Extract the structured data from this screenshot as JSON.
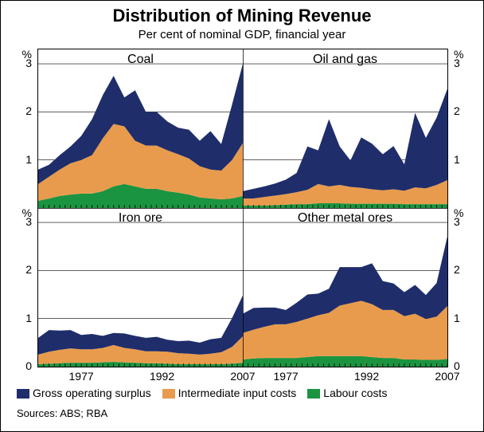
{
  "title": "Distribution of Mining Revenue",
  "subtitle": "Per cent of nominal GDP, financial year",
  "sources": "Sources: ABS; RBA",
  "background_color": "#ffffff",
  "grid_color": "#000000",
  "axis_font_size": 14,
  "title_font_size": 22,
  "subtitle_font_size": 15,
  "panel_title_font_size": 16,
  "x_range": [
    1969,
    2007
  ],
  "y_range": [
    0,
    3.3
  ],
  "y_ticks": [
    0,
    1,
    2,
    3
  ],
  "y_grid": [
    1,
    2,
    3
  ],
  "y_tick_labels": [
    "0",
    "1",
    "2",
    "3"
  ],
  "y_unit_label": "%",
  "x_ticks_major": [
    1977,
    1992,
    2007
  ],
  "x_tick_labels": [
    "1977",
    "1992",
    "2007"
  ],
  "series_order": [
    "labour",
    "intermediate",
    "surplus"
  ],
  "colors": {
    "surplus": "#1f2d6b",
    "intermediate": "#e89b4c",
    "labour": "#1b9441"
  },
  "legend": {
    "surplus": "Gross operating surplus",
    "intermediate": "Intermediate input costs",
    "labour": "Labour costs"
  },
  "panels": [
    {
      "key": "coal",
      "title": "Coal",
      "row": 0,
      "col": 0,
      "years": [
        1969,
        1971,
        1973,
        1975,
        1977,
        1979,
        1981,
        1983,
        1985,
        1987,
        1989,
        1991,
        1993,
        1995,
        1997,
        1999,
        2001,
        2003,
        2005,
        2007
      ],
      "labour": [
        0.15,
        0.2,
        0.25,
        0.28,
        0.3,
        0.3,
        0.35,
        0.45,
        0.5,
        0.45,
        0.4,
        0.4,
        0.35,
        0.32,
        0.28,
        0.22,
        0.2,
        0.18,
        0.2,
        0.25
      ],
      "intermediate": [
        0.35,
        0.45,
        0.55,
        0.65,
        0.7,
        0.8,
        1.1,
        1.3,
        1.2,
        0.95,
        0.9,
        0.9,
        0.85,
        0.8,
        0.75,
        0.65,
        0.6,
        0.6,
        0.8,
        1.1
      ],
      "surplus": [
        0.3,
        0.25,
        0.3,
        0.35,
        0.5,
        0.75,
        0.9,
        1.0,
        0.6,
        1.05,
        0.7,
        0.7,
        0.6,
        0.55,
        0.6,
        0.53,
        0.8,
        0.55,
        1.15,
        1.65
      ]
    },
    {
      "key": "oilgas",
      "title": "Oil and gas",
      "row": 0,
      "col": 1,
      "years": [
        1969,
        1971,
        1973,
        1975,
        1977,
        1979,
        1981,
        1983,
        1985,
        1987,
        1989,
        1991,
        1993,
        1995,
        1997,
        1999,
        2001,
        2003,
        2005,
        2007
      ],
      "labour": [
        0.05,
        0.05,
        0.05,
        0.06,
        0.07,
        0.08,
        0.08,
        0.1,
        0.1,
        0.1,
        0.09,
        0.09,
        0.09,
        0.09,
        0.09,
        0.08,
        0.08,
        0.08,
        0.08,
        0.08
      ],
      "intermediate": [
        0.15,
        0.15,
        0.18,
        0.2,
        0.22,
        0.25,
        0.3,
        0.4,
        0.35,
        0.38,
        0.35,
        0.33,
        0.3,
        0.28,
        0.3,
        0.28,
        0.35,
        0.33,
        0.4,
        0.5
      ],
      "surplus": [
        0.15,
        0.2,
        0.22,
        0.25,
        0.3,
        0.4,
        0.9,
        0.7,
        1.4,
        0.8,
        0.55,
        1.05,
        0.95,
        0.75,
        0.9,
        0.55,
        1.55,
        1.05,
        1.4,
        1.9
      ]
    },
    {
      "key": "ironore",
      "title": "Iron ore",
      "row": 1,
      "col": 0,
      "years": [
        1969,
        1971,
        1973,
        1975,
        1977,
        1979,
        1981,
        1983,
        1985,
        1987,
        1989,
        1991,
        1993,
        1995,
        1997,
        1999,
        2001,
        2003,
        2005,
        2007
      ],
      "labour": [
        0.05,
        0.06,
        0.07,
        0.08,
        0.08,
        0.08,
        0.09,
        0.1,
        0.09,
        0.08,
        0.07,
        0.07,
        0.06,
        0.05,
        0.05,
        0.05,
        0.05,
        0.05,
        0.06,
        0.08
      ],
      "intermediate": [
        0.2,
        0.25,
        0.28,
        0.3,
        0.28,
        0.28,
        0.3,
        0.35,
        0.3,
        0.28,
        0.25,
        0.25,
        0.25,
        0.23,
        0.22,
        0.2,
        0.22,
        0.25,
        0.35,
        0.55
      ],
      "surplus": [
        0.35,
        0.45,
        0.4,
        0.38,
        0.3,
        0.32,
        0.25,
        0.25,
        0.3,
        0.28,
        0.28,
        0.3,
        0.25,
        0.25,
        0.27,
        0.25,
        0.3,
        0.3,
        0.6,
        0.85
      ]
    },
    {
      "key": "other",
      "title": "Other metal ores",
      "row": 1,
      "col": 1,
      "years": [
        1969,
        1971,
        1973,
        1975,
        1977,
        1979,
        1981,
        1983,
        1985,
        1987,
        1989,
        1991,
        1993,
        1995,
        1997,
        1999,
        2001,
        2003,
        2005,
        2007
      ],
      "labour": [
        0.15,
        0.17,
        0.18,
        0.18,
        0.18,
        0.18,
        0.2,
        0.22,
        0.22,
        0.22,
        0.22,
        0.22,
        0.2,
        0.18,
        0.18,
        0.15,
        0.15,
        0.14,
        0.14,
        0.16
      ],
      "intermediate": [
        0.55,
        0.6,
        0.65,
        0.7,
        0.7,
        0.75,
        0.8,
        0.85,
        0.9,
        1.05,
        1.1,
        1.15,
        1.1,
        1.0,
        1.0,
        0.9,
        0.95,
        0.85,
        0.9,
        1.1
      ],
      "surplus": [
        0.4,
        0.45,
        0.4,
        0.35,
        0.3,
        0.4,
        0.5,
        0.45,
        0.5,
        0.8,
        0.75,
        0.7,
        0.85,
        0.6,
        0.55,
        0.5,
        0.6,
        0.5,
        0.7,
        1.45
      ]
    }
  ]
}
